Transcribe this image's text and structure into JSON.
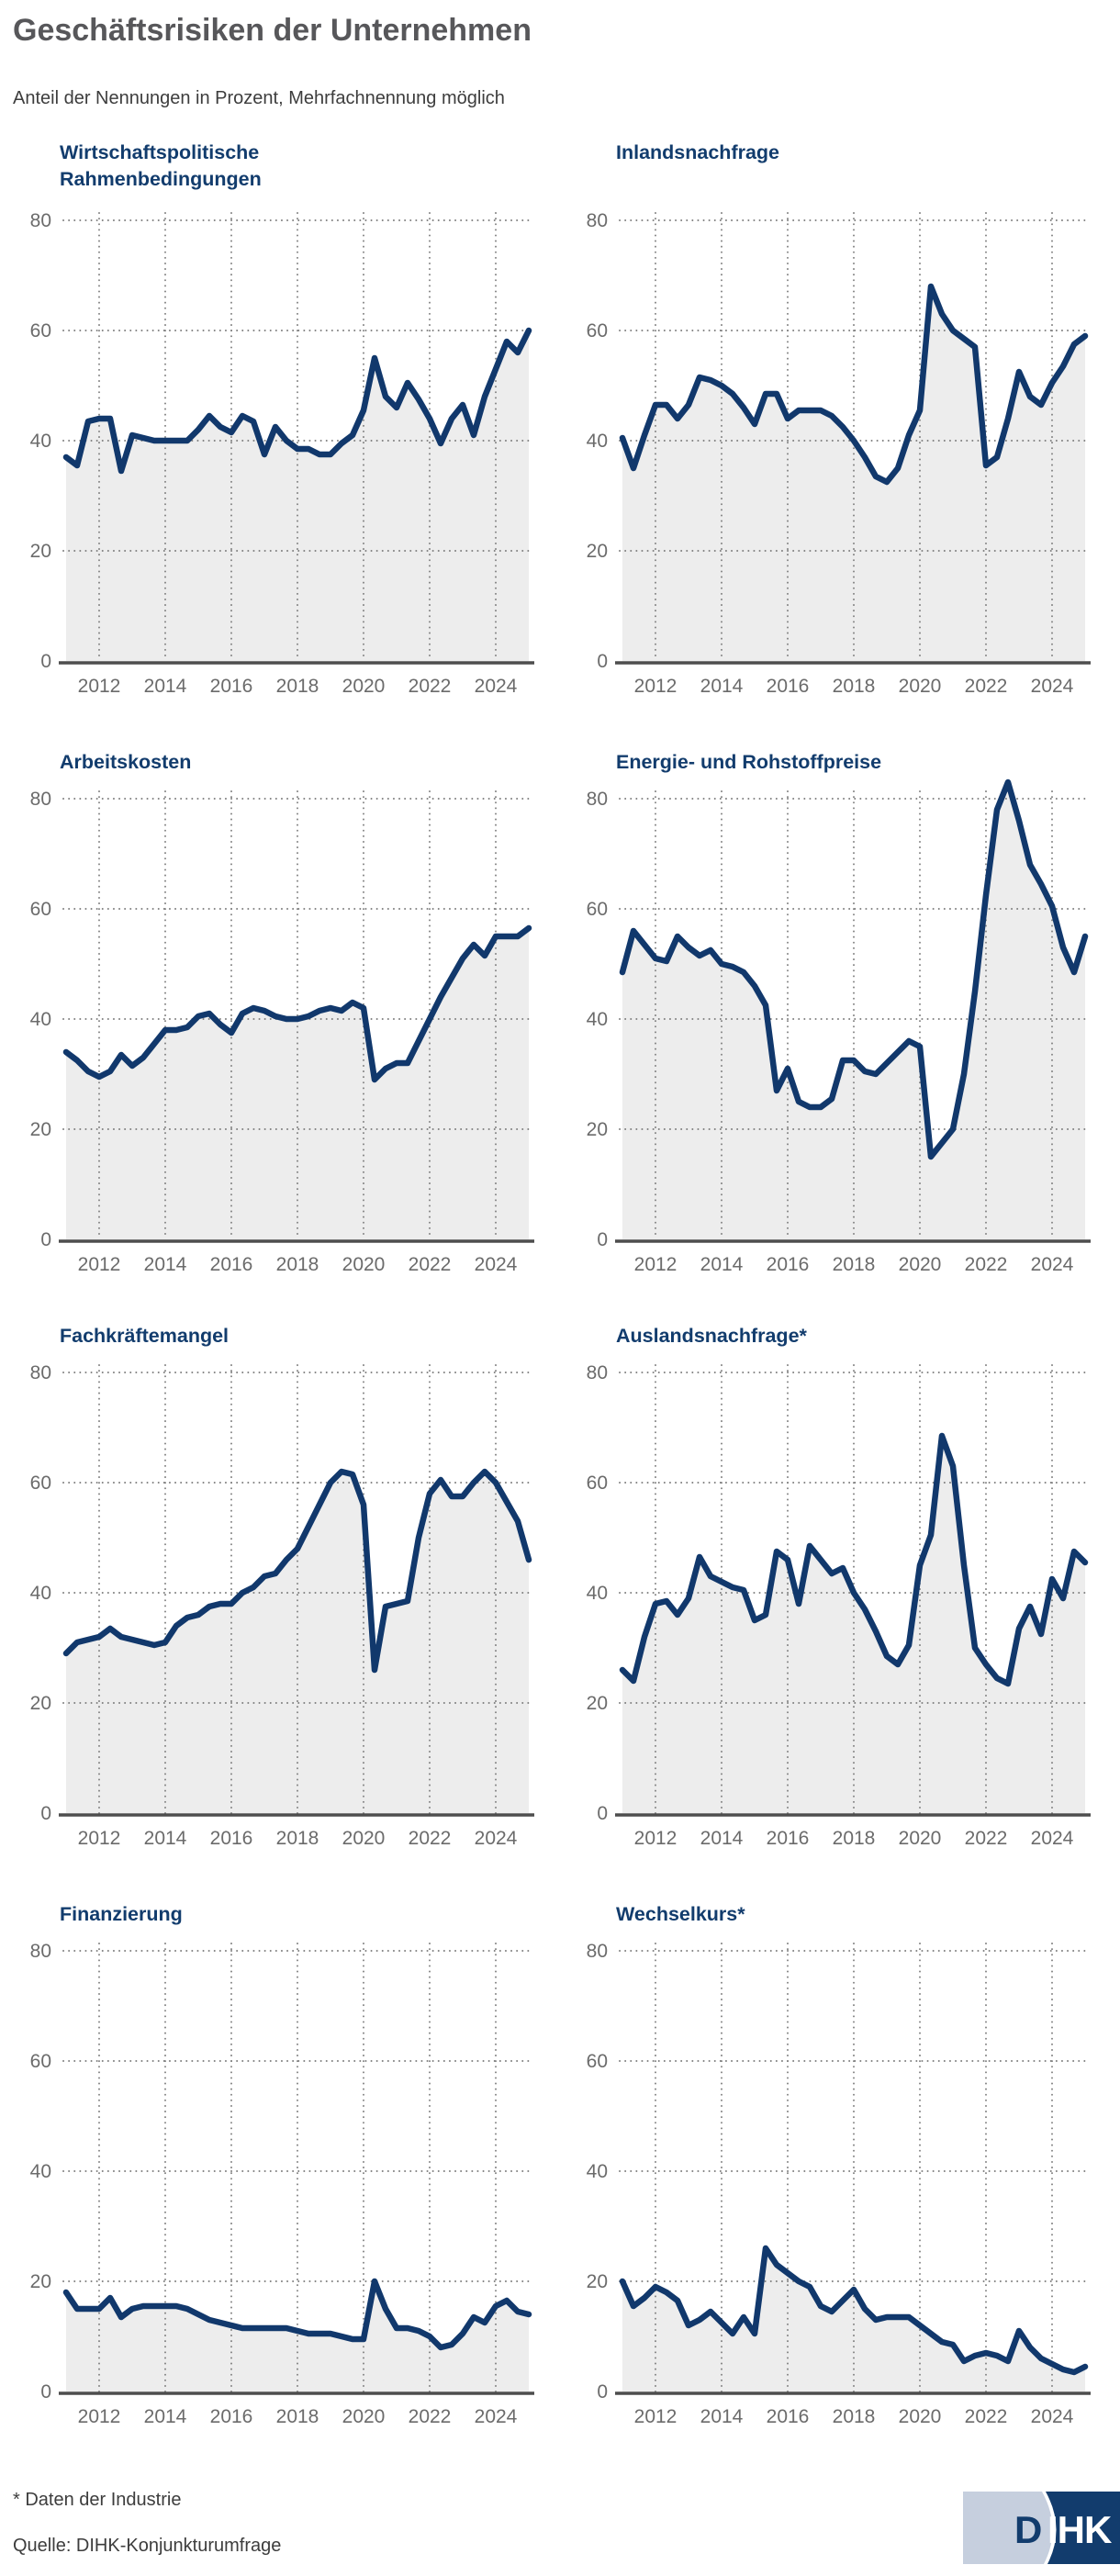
{
  "header": {
    "title": "Geschäftsrisiken der Unternehmen",
    "subtitle": "Anteil der Nennungen in Prozent, Mehrfachnennung möglich"
  },
  "footer": {
    "note": "* Daten der Industrie",
    "source": "Quelle: DIHK-Konjunkturumfrage",
    "logo_d": "D",
    "logo_ihk": "IHK"
  },
  "colors": {
    "line_navy": "#11386c",
    "title_blue": "#123c6d",
    "area_fill": "#ededed",
    "grid_gray": "#7f7f7f",
    "axis_label_gray": "#6b6b6b",
    "baseline_gray": "#4d4d4d",
    "header_gray": "#57575a",
    "logo_light": "#c6cfde",
    "logo_navy": "#123c6d"
  },
  "axis": {
    "y_ticks": [
      0,
      20,
      40,
      60,
      80
    ],
    "ylim": [
      0,
      80
    ],
    "x_tick_years": [
      2012,
      2014,
      2016,
      2018,
      2020,
      2022,
      2024
    ],
    "x_start": 2011,
    "x_end": 2025,
    "points_per_year": 3,
    "grid": "dotted"
  },
  "chart_data": [
    {
      "type": "area",
      "title_lines": [
        "Wirtschaftspolitische",
        "Rahmenbedingungen"
      ],
      "title": "Wirtschaftspolitische Rahmenbedingungen",
      "values": [
        37,
        35.5,
        43.5,
        44,
        44,
        34.5,
        41,
        40.5,
        40,
        40,
        40,
        40,
        42,
        44.5,
        42.5,
        41.5,
        44.5,
        43.5,
        37.5,
        42.5,
        40,
        38.5,
        38.5,
        37.5,
        37.5,
        39.5,
        41,
        45.5,
        55,
        48,
        46,
        50.5,
        47.5,
        44,
        39.5,
        44,
        46.5,
        41,
        48,
        53,
        58,
        56,
        60
      ]
    },
    {
      "type": "area",
      "title_lines": [
        "Inlandsnachfrage"
      ],
      "title": "Inlandsnachfrage",
      "values": [
        40.5,
        35,
        41,
        46.5,
        46.5,
        44,
        46.5,
        51.5,
        51,
        50,
        48.5,
        46,
        43,
        48.5,
        48.5,
        44,
        45.5,
        45.5,
        45.5,
        44.5,
        42.5,
        40,
        37,
        33.5,
        32.5,
        35,
        41,
        45.5,
        68,
        63,
        60,
        58.5,
        57,
        35.5,
        37,
        44,
        52.5,
        48,
        46.5,
        50.5,
        53.5,
        57.5,
        59
      ]
    },
    {
      "type": "area",
      "title_lines": [
        "Arbeitskosten"
      ],
      "title": "Arbeitskosten",
      "values": [
        34,
        32.5,
        30.5,
        29.5,
        30.5,
        33.5,
        31.5,
        33,
        35.5,
        38,
        38,
        38.5,
        40.5,
        41,
        39,
        37.5,
        41,
        42,
        41.5,
        40.5,
        40,
        40,
        40.5,
        41.5,
        42,
        41.5,
        43,
        42,
        29,
        31,
        32,
        32,
        36,
        40,
        44,
        47.5,
        51,
        53.5,
        51.5,
        55,
        55,
        55,
        56.5
      ]
    },
    {
      "type": "area",
      "title_lines": [
        "Energie- und Rohstoffpreise"
      ],
      "title": "Energie- und Rohstoffpreise",
      "values": [
        48.5,
        56,
        53.5,
        51,
        50.5,
        55,
        53,
        51.5,
        52.5,
        50,
        49.5,
        48.5,
        46,
        42.5,
        27,
        31,
        25,
        24,
        24,
        25.5,
        32.5,
        32.5,
        30.5,
        30,
        32,
        34,
        36,
        35,
        15,
        17.5,
        20,
        30,
        45,
        62.5,
        78,
        83,
        76,
        68,
        64.5,
        60.5,
        53,
        48.5,
        55
      ]
    },
    {
      "type": "area",
      "title_lines": [
        "Fachkräftemangel"
      ],
      "title": "Fachkräftemangel",
      "values": [
        29,
        31,
        31.5,
        32,
        33.5,
        32,
        31.5,
        31,
        30.5,
        31,
        34,
        35.5,
        36,
        37.5,
        38,
        38,
        40,
        41,
        43,
        43.5,
        46,
        48,
        52,
        56,
        60,
        62,
        61.5,
        56,
        26,
        37.5,
        38,
        38.5,
        50,
        58,
        60.5,
        57.5,
        57.5,
        60,
        62,
        60,
        56.5,
        53,
        46
      ]
    },
    {
      "type": "area",
      "title_lines": [
        "Auslandsnachfrage*"
      ],
      "title": "Auslandsnachfrage*",
      "values": [
        26,
        24,
        32,
        38,
        38.5,
        36,
        39,
        46.5,
        43,
        42,
        41,
        40.5,
        35,
        36,
        47.5,
        46,
        38,
        48.5,
        46,
        43.5,
        44.5,
        40,
        37,
        33,
        28.5,
        27,
        30.5,
        45,
        50.5,
        68.5,
        63,
        45,
        30,
        27,
        24.5,
        23.5,
        33.5,
        37.5,
        32.5,
        42.5,
        39,
        47.5,
        45.5
      ]
    },
    {
      "type": "area",
      "title_lines": [
        "Finanzierung"
      ],
      "title": "Finanzierung",
      "values": [
        18,
        15,
        15,
        15,
        17,
        13.5,
        15,
        15.5,
        15.5,
        15.5,
        15.5,
        15,
        14,
        13,
        12.5,
        12,
        11.5,
        11.5,
        11.5,
        11.5,
        11.5,
        11,
        10.5,
        10.5,
        10.5,
        10,
        9.5,
        9.5,
        20,
        15,
        11.5,
        11.5,
        11,
        10,
        8,
        8.5,
        10.5,
        13.5,
        12.5,
        15.5,
        16.5,
        14.5,
        14
      ]
    },
    {
      "type": "area",
      "title_lines": [
        "Wechselkurs*"
      ],
      "title": "Wechselkurs*",
      "values": [
        20,
        15.5,
        17,
        19,
        18,
        16.5,
        12,
        13,
        14.5,
        12.5,
        10.5,
        13.5,
        10.5,
        26,
        23,
        21.5,
        20,
        19,
        15.5,
        14.5,
        16.5,
        18.5,
        15,
        13,
        13.5,
        13.5,
        13.5,
        12,
        10.5,
        9,
        8.5,
        5.5,
        6.5,
        7,
        6.5,
        5.5,
        11,
        8,
        6,
        5,
        4,
        3.5,
        4.5
      ]
    }
  ]
}
